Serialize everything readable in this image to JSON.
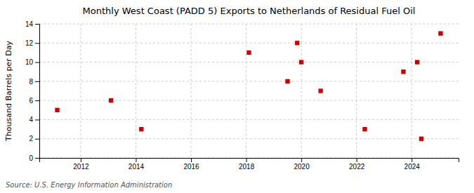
{
  "chart_data": {
    "type": "scatter",
    "title": "Monthly West Coast (PADD 5) Exports to Netherlands of Residual Fuel Oil",
    "ylabel": "Thousand Barrels per Day",
    "annotations": [
      "Source: U.S. Energy Information Administration"
    ],
    "x": [
      2011.15,
      2013.1,
      2014.2,
      2018.1,
      2019.5,
      2019.85,
      2020.0,
      2020.7,
      2022.3,
      2023.7,
      2024.2,
      2024.35,
      2025.05
    ],
    "values": [
      5,
      6,
      3,
      11,
      8,
      12,
      10,
      7,
      3,
      9,
      10,
      2,
      13
    ],
    "color": "#cc0000",
    "marker": "square",
    "xlim": [
      2010.5,
      2025.7
    ],
    "ylim": [
      0,
      14
    ],
    "xticks": [
      2012,
      2014,
      2016,
      2018,
      2020,
      2022,
      2024
    ],
    "yticks": [
      0,
      2,
      4,
      6,
      8,
      10,
      12,
      14
    ],
    "grid": true
  }
}
